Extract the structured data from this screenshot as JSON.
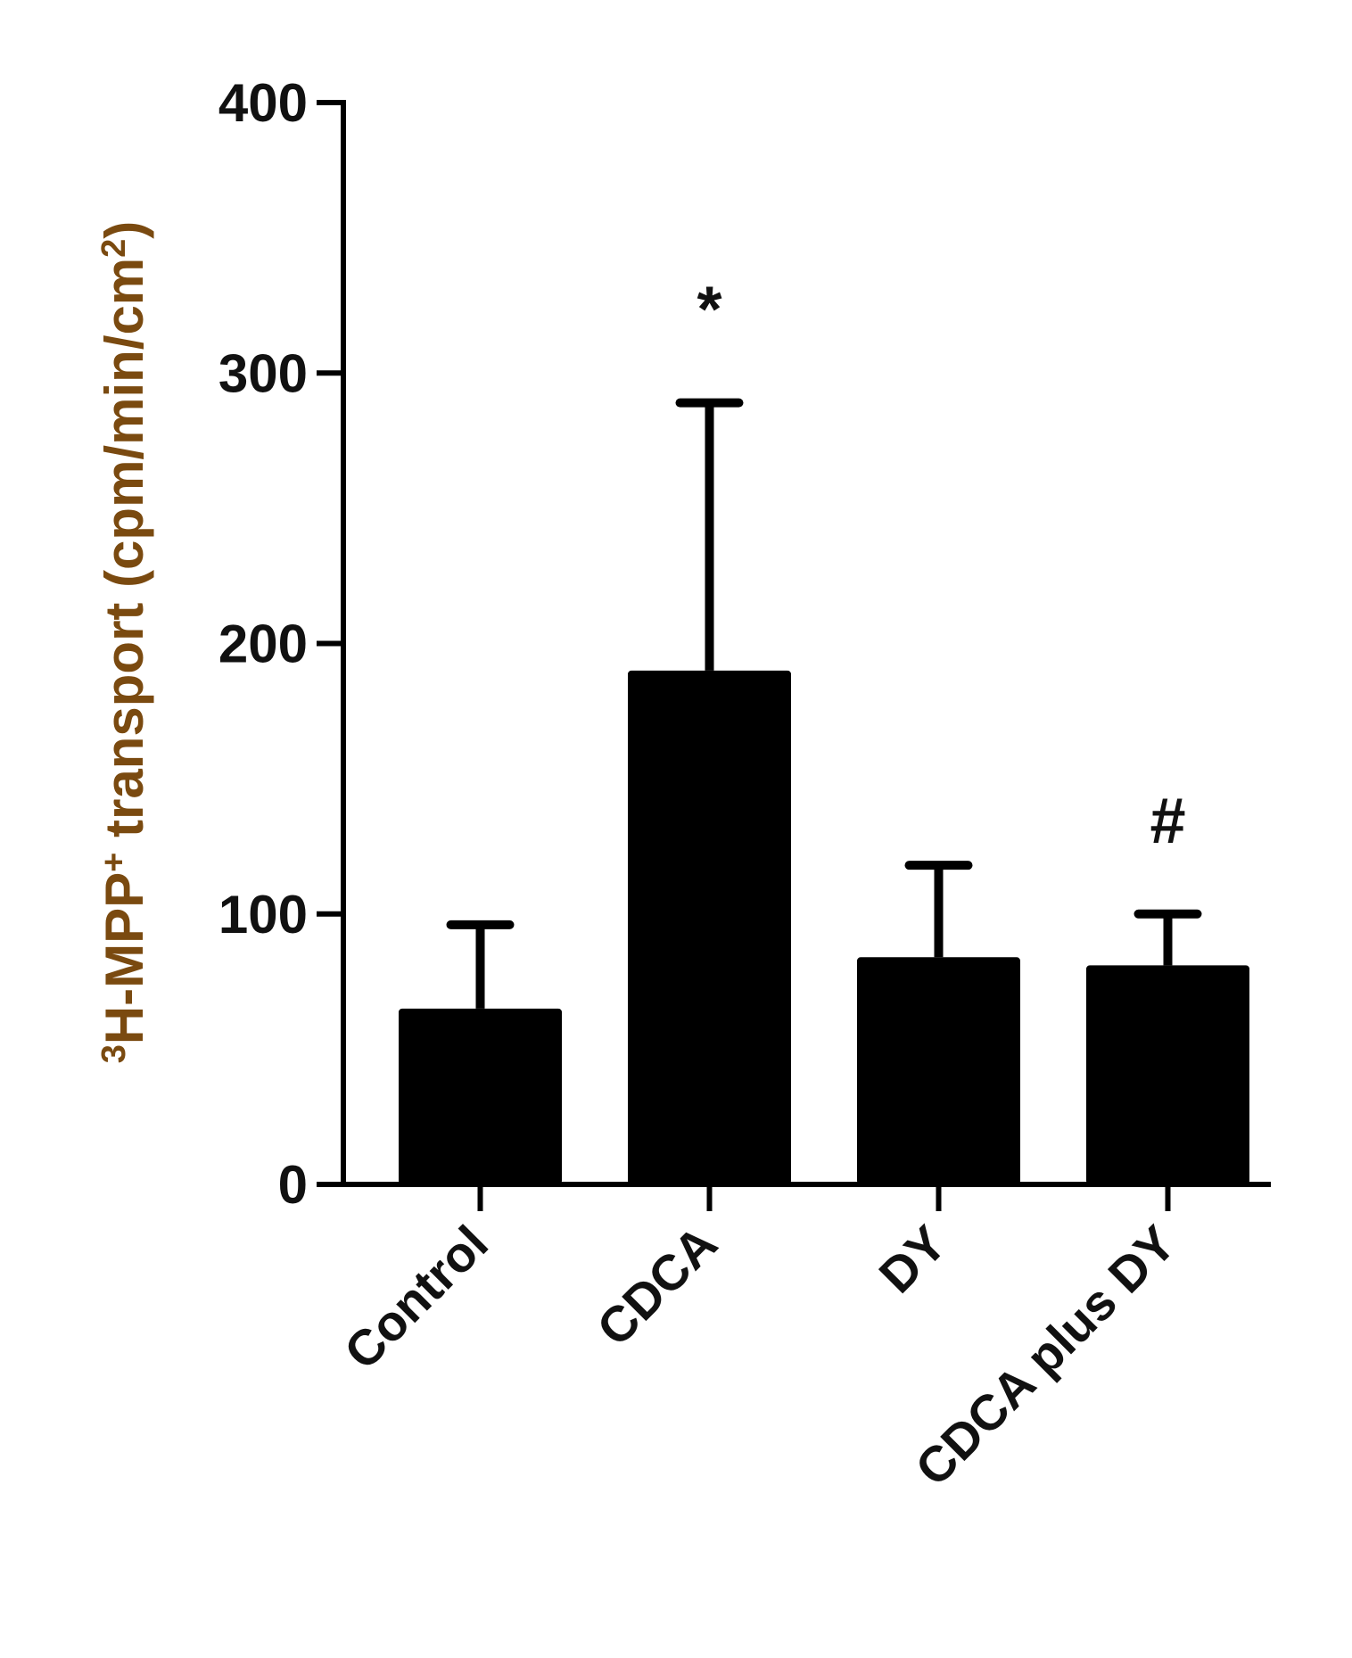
{
  "chart_data": {
    "type": "bar",
    "categories": [
      "Control",
      "CDCA",
      "DY",
      "CDCA plus DY"
    ],
    "values": [
      65,
      190,
      84,
      81
    ],
    "errors": [
      31,
      99,
      34,
      19
    ],
    "annotations": [
      "",
      "*",
      "",
      "#"
    ],
    "ylabel": {
      "sup_pre": "3",
      "mid": "H-MPP",
      "sup_mid": "+",
      "text": " transport (cpm/min/cm",
      "sup_post": "2",
      "close": ")"
    },
    "ylim": [
      0,
      400
    ],
    "yticks": [
      0,
      100,
      200,
      300,
      400
    ],
    "grid": false,
    "colors": {
      "bar": "#000000",
      "axis": "#000000",
      "ylabel": "#7a4a10"
    }
  }
}
